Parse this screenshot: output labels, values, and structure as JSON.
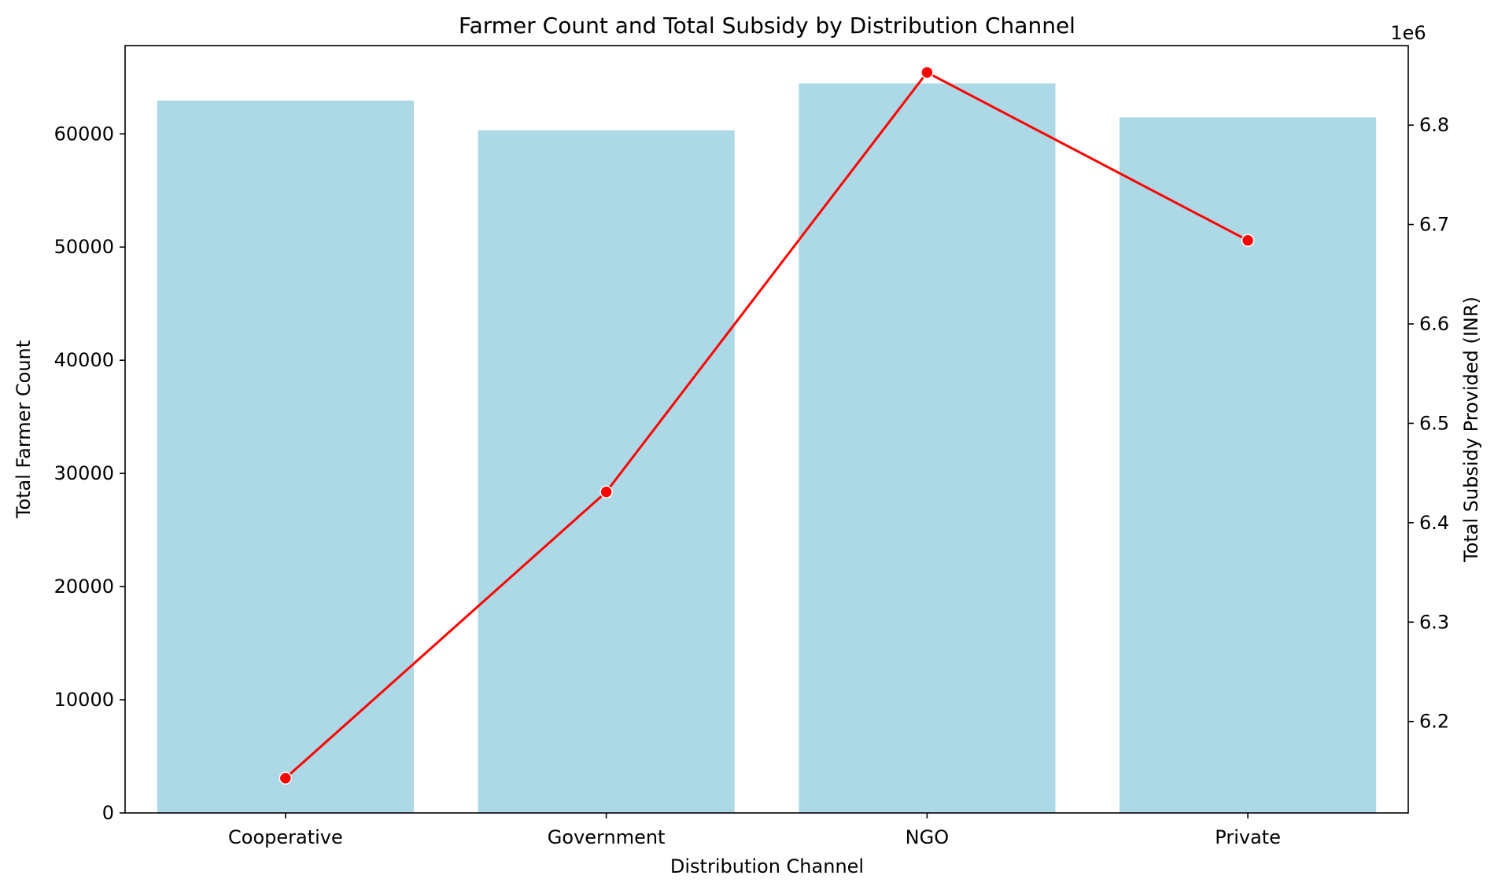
{
  "chart_data": {
    "type": "bar+line",
    "title": "Farmer Count and Total Subsidy by Distribution Channel",
    "xlabel": "Distribution Channel",
    "ylabel_left": "Total Farmer Count",
    "ylabel_right": "Total Subsidy Provided (INR)",
    "right_offset_text": "1e6",
    "categories": [
      "Cooperative",
      "Government",
      "NGO",
      "Private"
    ],
    "bars": {
      "values": [
        62950,
        60320,
        64450,
        61460
      ],
      "color": "#add8e6"
    },
    "line": {
      "values": [
        6143000,
        6431000,
        6853000,
        6684000
      ],
      "color": "#ff0000"
    },
    "y_left": {
      "lim": [
        0,
        67800
      ],
      "ticks": [
        0,
        10000,
        20000,
        30000,
        40000,
        50000,
        60000
      ],
      "tick_labels": [
        "0",
        "10000",
        "20000",
        "30000",
        "40000",
        "50000",
        "60000"
      ]
    },
    "y_right": {
      "lim": [
        6108000,
        6880000
      ],
      "ticks": [
        6200000,
        6300000,
        6400000,
        6500000,
        6600000,
        6700000,
        6800000
      ],
      "tick_labels": [
        "6.2",
        "6.3",
        "6.4",
        "6.5",
        "6.6",
        "6.7",
        "6.8"
      ]
    },
    "grid": false,
    "legend": "none"
  }
}
